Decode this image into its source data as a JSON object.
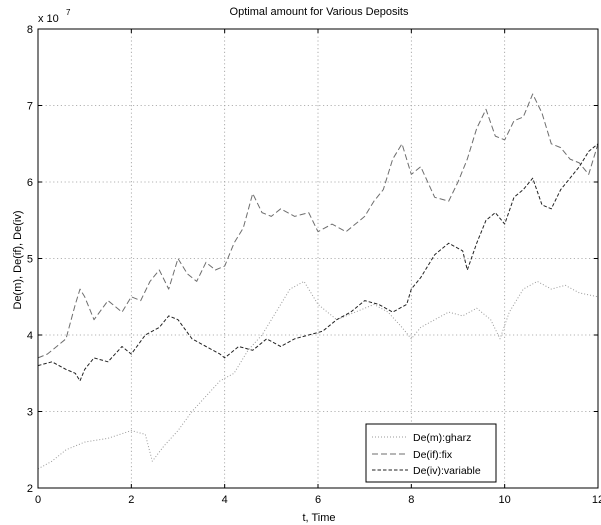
{
  "chart_data": {
    "type": "line",
    "title": "Optimal amount for Various Deposits",
    "xlabel": "t, Time",
    "ylabel": "De(m), De(if), De(iv)",
    "y_multiplier_label": "x 10",
    "y_multiplier_exponent": "7",
    "xlim": [
      0,
      12
    ],
    "ylim": [
      2,
      8
    ],
    "x_ticks": [
      0,
      2,
      4,
      6,
      8,
      10,
      12
    ],
    "y_ticks": [
      2,
      3,
      4,
      5,
      6,
      7,
      8
    ],
    "x_tick_labels": [
      "0",
      "2",
      "4",
      "6",
      "8",
      "10",
      "12"
    ],
    "y_tick_labels": [
      "2",
      "3",
      "4",
      "5",
      "6",
      "7",
      "8"
    ],
    "grid": true,
    "legend_position": "bottom-right",
    "series": [
      {
        "name": "De(m):gharz",
        "style": "dotted",
        "color": "#9a9a9a",
        "x": [
          0,
          0.3,
          0.6,
          1.0,
          1.5,
          2.0,
          2.3,
          2.45,
          2.7,
          3.0,
          3.3,
          3.6,
          3.9,
          4.2,
          4.5,
          4.8,
          5.1,
          5.4,
          5.7,
          6.0,
          6.4,
          6.8,
          7.2,
          7.5,
          7.8,
          8.0,
          8.2,
          8.5,
          8.8,
          9.1,
          9.4,
          9.7,
          9.9,
          10.1,
          10.4,
          10.7,
          11.0,
          11.3,
          11.6,
          12.0
        ],
        "y": [
          2.25,
          2.35,
          2.5,
          2.6,
          2.65,
          2.75,
          2.7,
          2.35,
          2.55,
          2.75,
          3.0,
          3.2,
          3.4,
          3.5,
          3.8,
          4.0,
          4.3,
          4.6,
          4.7,
          4.4,
          4.2,
          4.3,
          4.4,
          4.3,
          4.1,
          3.95,
          4.1,
          4.2,
          4.3,
          4.25,
          4.35,
          4.2,
          3.95,
          4.3,
          4.6,
          4.7,
          4.6,
          4.65,
          4.55,
          4.5
        ]
      },
      {
        "name": "De(if):fix",
        "style": "dashed",
        "color": "#6e6e6e",
        "x": [
          0,
          0.2,
          0.4,
          0.6,
          0.8,
          0.9,
          1.0,
          1.2,
          1.5,
          1.8,
          2.0,
          2.2,
          2.4,
          2.6,
          2.8,
          3.0,
          3.2,
          3.4,
          3.6,
          3.8,
          4.0,
          4.2,
          4.4,
          4.6,
          4.8,
          5.0,
          5.2,
          5.5,
          5.8,
          6.0,
          6.3,
          6.6,
          6.9,
          7.0,
          7.2,
          7.4,
          7.6,
          7.8,
          8.0,
          8.2,
          8.5,
          8.8,
          9.0,
          9.2,
          9.4,
          9.6,
          9.8,
          10.0,
          10.2,
          10.4,
          10.6,
          10.8,
          11.0,
          11.2,
          11.4,
          11.6,
          11.8,
          12.0
        ],
        "y": [
          3.7,
          3.75,
          3.85,
          3.95,
          4.4,
          4.6,
          4.5,
          4.2,
          4.45,
          4.3,
          4.5,
          4.45,
          4.7,
          4.85,
          4.6,
          5.0,
          4.8,
          4.7,
          4.95,
          4.85,
          4.9,
          5.2,
          5.4,
          5.85,
          5.6,
          5.55,
          5.65,
          5.55,
          5.6,
          5.35,
          5.45,
          5.35,
          5.5,
          5.55,
          5.75,
          5.9,
          6.3,
          6.5,
          6.1,
          6.2,
          5.8,
          5.75,
          6.0,
          6.3,
          6.7,
          6.95,
          6.6,
          6.55,
          6.8,
          6.85,
          7.15,
          6.9,
          6.5,
          6.45,
          6.3,
          6.25,
          6.1,
          6.5
        ]
      },
      {
        "name": "De(iv):variable",
        "style": "dashdense",
        "color": "#222222",
        "x": [
          0,
          0.3,
          0.6,
          0.8,
          0.9,
          1.0,
          1.2,
          1.5,
          1.8,
          2.0,
          2.3,
          2.6,
          2.8,
          3.0,
          3.3,
          3.6,
          3.9,
          4.0,
          4.3,
          4.6,
          4.9,
          5.2,
          5.5,
          5.8,
          6.1,
          6.4,
          6.7,
          7.0,
          7.3,
          7.6,
          7.9,
          8.0,
          8.2,
          8.5,
          8.8,
          9.1,
          9.2,
          9.4,
          9.6,
          9.8,
          10.0,
          10.2,
          10.4,
          10.6,
          10.8,
          11.0,
          11.2,
          11.4,
          11.6,
          11.8,
          12.0
        ],
        "y": [
          3.6,
          3.65,
          3.55,
          3.5,
          3.4,
          3.55,
          3.7,
          3.65,
          3.85,
          3.75,
          4.0,
          4.1,
          4.25,
          4.2,
          3.95,
          3.85,
          3.75,
          3.7,
          3.85,
          3.8,
          3.95,
          3.85,
          3.95,
          4.0,
          4.05,
          4.2,
          4.3,
          4.45,
          4.4,
          4.3,
          4.4,
          4.6,
          4.75,
          5.05,
          5.2,
          5.1,
          4.85,
          5.2,
          5.5,
          5.6,
          5.45,
          5.8,
          5.9,
          6.05,
          5.7,
          5.65,
          5.9,
          6.05,
          6.2,
          6.4,
          6.5
        ]
      }
    ]
  }
}
